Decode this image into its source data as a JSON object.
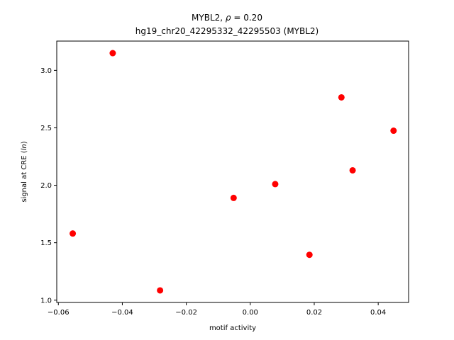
{
  "chart_data": {
    "type": "scatter",
    "title_line1_prefix": "MYBL2, ",
    "title_rho_symbol": "ρ",
    "title_rho_value": " = 0.20",
    "title_line2": "hg19_chr20_42295332_42295503 (MYBL2)",
    "xlabel": "motif activity",
    "ylabel_prefix": "signal at CRE (",
    "ylabel_italic": "ln",
    "ylabel_suffix": ")",
    "xlim": [
      -0.0605,
      0.0495
    ],
    "ylim": [
      0.98,
      3.255
    ],
    "x_ticks": [
      -0.06,
      -0.04,
      -0.02,
      0.0,
      0.02,
      0.04
    ],
    "x_tick_labels": [
      "−0.06",
      "−0.04",
      "−0.02",
      "0.00",
      "0.02",
      "0.04"
    ],
    "y_ticks": [
      1.0,
      1.5,
      2.0,
      2.5,
      3.0
    ],
    "y_tick_labels": [
      "1.0",
      "1.5",
      "2.0",
      "2.5",
      "3.0"
    ],
    "grid": false,
    "marker_color": "#ff0000",
    "points": [
      {
        "x": -0.0555,
        "y": 1.58
      },
      {
        "x": -0.043,
        "y": 3.15
      },
      {
        "x": -0.0282,
        "y": 1.085
      },
      {
        "x": -0.0052,
        "y": 1.89
      },
      {
        "x": 0.0078,
        "y": 2.01
      },
      {
        "x": 0.0185,
        "y": 1.395
      },
      {
        "x": 0.0285,
        "y": 2.765
      },
      {
        "x": 0.032,
        "y": 2.13
      },
      {
        "x": 0.0448,
        "y": 2.475
      }
    ]
  }
}
